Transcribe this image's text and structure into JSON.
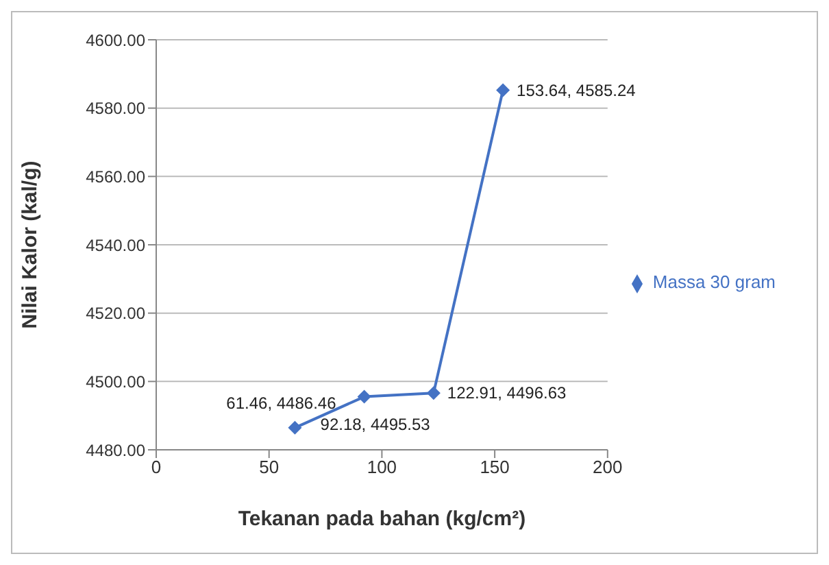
{
  "chart_data": {
    "type": "line",
    "xlabel": "Tekanan pada bahan (kg/cm²)",
    "ylabel": "Nilai Kalor (kal/g)",
    "x": [
      61.46,
      92.18,
      122.91,
      153.64
    ],
    "series": [
      {
        "name": "Massa 30 gram",
        "color": "#4472c4",
        "values": [
          4486.46,
          4495.53,
          4496.63,
          4585.24
        ],
        "value_labels": [
          "61.46, 4486.46",
          "92.18, 4495.53",
          "122.91, 4496.63",
          "153.64, 4585.24"
        ]
      }
    ],
    "xlim": [
      0,
      200
    ],
    "xticks": [
      0,
      50,
      100,
      150,
      200
    ],
    "ylim": [
      4480,
      4600
    ],
    "yticks": [
      {
        "value": 4480,
        "label": "4480.00"
      },
      {
        "value": 4500,
        "label": "4500.00"
      },
      {
        "value": 4520,
        "label": "4520.00"
      },
      {
        "value": 4540,
        "label": "4540.00"
      },
      {
        "value": 4560,
        "label": "4560.00"
      },
      {
        "value": 4580,
        "label": "4580.00"
      },
      {
        "value": 4600,
        "label": "4600.00"
      }
    ],
    "grid": "y",
    "legend": "right",
    "marker": "diamond",
    "line_style": "solid"
  }
}
